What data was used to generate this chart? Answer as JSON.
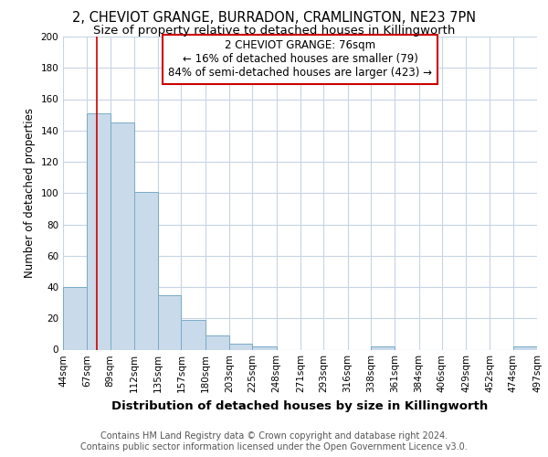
{
  "title1": "2, CHEVIOT GRANGE, BURRADON, CRAMLINGTON, NE23 7PN",
  "title2": "Size of property relative to detached houses in Killingworth",
  "xlabel": "Distribution of detached houses by size in Killingworth",
  "ylabel": "Number of detached properties",
  "bin_edges": [
    44,
    67,
    89,
    112,
    135,
    157,
    180,
    203,
    225,
    248,
    271,
    293,
    316,
    338,
    361,
    384,
    406,
    429,
    452,
    474,
    497
  ],
  "bar_heights": [
    40,
    151,
    145,
    101,
    35,
    19,
    9,
    4,
    2,
    0,
    0,
    0,
    0,
    2,
    0,
    0,
    0,
    0,
    0,
    2
  ],
  "bar_color": "#c9daea",
  "bar_edge_color": "#7aaac8",
  "property_size": 76,
  "red_line_color": "#cc0000",
  "annotation_text": "2 CHEVIOT GRANGE: 76sqm\n← 16% of detached houses are smaller (79)\n84% of semi-detached houses are larger (423) →",
  "annotation_box_color": "white",
  "annotation_box_edge": "#cc0000",
  "ylim": [
    0,
    200
  ],
  "yticks": [
    0,
    20,
    40,
    60,
    80,
    100,
    120,
    140,
    160,
    180,
    200
  ],
  "grid_color": "#c8d4e4",
  "background_color": "white",
  "footer_text": "Contains HM Land Registry data © Crown copyright and database right 2024.\nContains public sector information licensed under the Open Government Licence v3.0.",
  "title1_fontsize": 10.5,
  "title2_fontsize": 9.5,
  "xlabel_fontsize": 9.5,
  "ylabel_fontsize": 8.5,
  "tick_fontsize": 7.5,
  "annot_fontsize": 8.5,
  "footer_fontsize": 7.0
}
